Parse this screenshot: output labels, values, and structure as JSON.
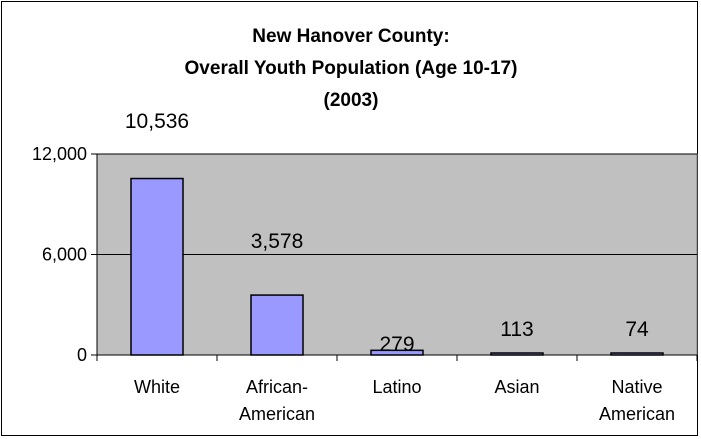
{
  "chart_data": {
    "type": "bar",
    "title_lines": [
      "New Hanover County:",
      "Overall Youth Population (Age 10-17)",
      "(2003)"
    ],
    "categories": [
      [
        "White"
      ],
      [
        "African-",
        "American"
      ],
      [
        "Latino"
      ],
      [
        "Asian"
      ],
      [
        "Native",
        "American"
      ]
    ],
    "values": [
      10536,
      3578,
      279,
      113,
      74
    ],
    "data_labels": [
      "10,536",
      "3,578",
      "279",
      "113",
      "74"
    ],
    "ylim": [
      0,
      12000
    ],
    "y_ticks": [
      {
        "value": 0,
        "label": "0"
      },
      {
        "value": 6000,
        "label": "6,000"
      },
      {
        "value": 12000,
        "label": "12,000"
      }
    ],
    "grid": true,
    "legend": "none",
    "colors": {
      "plot_bg": "#c0c0c0",
      "bar_fill": "#9999ff",
      "bar_stroke": "#000000",
      "grid": "#000000"
    }
  }
}
